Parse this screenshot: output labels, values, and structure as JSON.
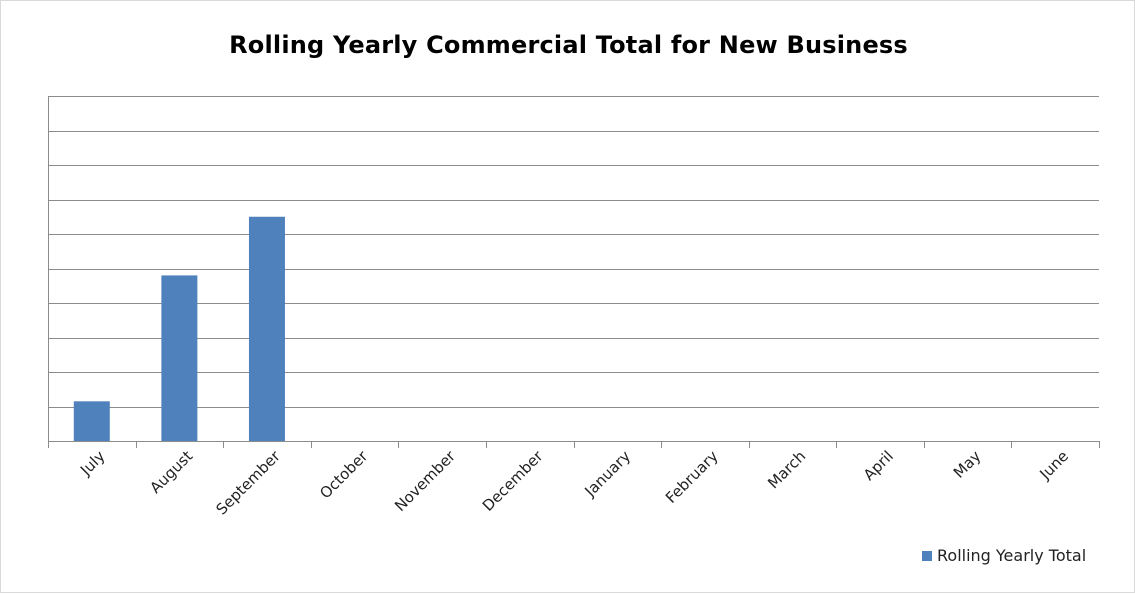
{
  "colors": {
    "bar": "#4f81bd",
    "gridline": "#8c8c8c",
    "axis": "#8c8c8c",
    "text": "#000000"
  },
  "chart_data": {
    "type": "bar",
    "title": "Rolling Yearly Commercial Total for New Business",
    "xlabel": "",
    "ylabel": "",
    "categories": [
      "July",
      "August",
      "September",
      "October",
      "November",
      "December",
      "January",
      "February",
      "March",
      "April",
      "May",
      "June"
    ],
    "series": [
      {
        "name": "Rolling Yearly Total",
        "values": [
          1.15,
          4.8,
          6.5,
          0,
          0,
          0,
          0,
          0,
          0,
          0,
          0,
          0
        ]
      }
    ],
    "ylim": [
      0,
      10
    ],
    "yticks": [
      0,
      1,
      2,
      3,
      4,
      5,
      6,
      7,
      8,
      9,
      10
    ],
    "ytick_labels_visible": false,
    "grid": true,
    "legend_position": "bottom-right"
  }
}
